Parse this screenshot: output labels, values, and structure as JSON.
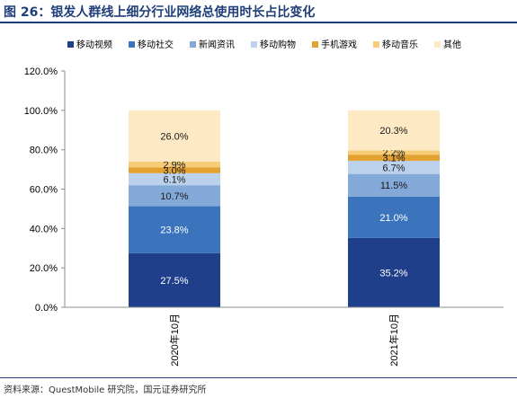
{
  "figure": {
    "title": "图 26：银发人群线上细分行业网络总使用时长占比变化",
    "source": "资料来源：QuestMobile 研究院，国元证券研究所"
  },
  "chart_data": {
    "type": "bar",
    "stacked": true,
    "categories": [
      "2020年10月",
      "2021年10月"
    ],
    "series": [
      {
        "name": "移动视频",
        "values": [
          27.5,
          35.2
        ],
        "labels": [
          "27.5%",
          "35.2%"
        ],
        "color": "#1f3f8a",
        "label_color": "#ffffff"
      },
      {
        "name": "移动社交",
        "values": [
          23.8,
          21.0
        ],
        "labels": [
          "23.8%",
          "21.0%"
        ],
        "color": "#3b73bd",
        "label_color": "#ffffff"
      },
      {
        "name": "新闻资讯",
        "values": [
          10.7,
          11.5
        ],
        "labels": [
          "10.7%",
          "11.5%"
        ],
        "color": "#83a9d8",
        "label_color": "#1a1a1a"
      },
      {
        "name": "移动购物",
        "values": [
          6.1,
          6.7
        ],
        "labels": [
          "6.1%",
          "6.7%"
        ],
        "color": "#bcd2ec",
        "label_color": "#1a1a1a"
      },
      {
        "name": "手机游戏",
        "values": [
          3.0,
          3.1
        ],
        "labels": [
          "3.0%",
          "3.1%"
        ],
        "color": "#e3a12f",
        "label_color": "#1a1a1a"
      },
      {
        "name": "移动音乐",
        "values": [
          2.9,
          2.2
        ],
        "labels": [
          "2.9%",
          "2.2%"
        ],
        "color": "#f6cc78",
        "label_color": "#1a1a1a"
      },
      {
        "name": "其他",
        "values": [
          26.0,
          20.3
        ],
        "labels": [
          "26.0%",
          "20.3%"
        ],
        "color": "#fde9c3",
        "label_color": "#1a1a1a"
      }
    ],
    "y_ticks": [
      "0.0%",
      "20.0%",
      "40.0%",
      "60.0%",
      "80.0%",
      "100.0%",
      "120.0%"
    ],
    "ylim": [
      0,
      120
    ],
    "grid": false,
    "legend_position": "top"
  }
}
